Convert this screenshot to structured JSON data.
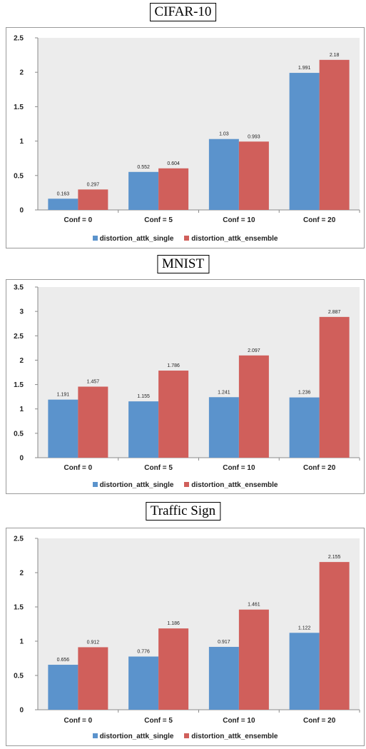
{
  "chart_data": [
    {
      "type": "bar",
      "title": "CIFAR-10",
      "categories": [
        "Conf = 0",
        "Conf = 5",
        "Conf = 10",
        "Conf = 20"
      ],
      "series": [
        {
          "name": "distortion_attk_single",
          "values": [
            0.163,
            0.552,
            1.03,
            1.991
          ],
          "labels": [
            "0.163",
            "0.552",
            "1.03",
            "1.991"
          ]
        },
        {
          "name": "distortion_attk_ensemble",
          "values": [
            0.297,
            0.604,
            0.993,
            2.18
          ],
          "labels": [
            "0.297",
            "0.604",
            "0.993",
            "2.18"
          ]
        }
      ],
      "ylim": [
        0,
        2.5
      ],
      "yticks": [
        "0",
        "0.5",
        "1",
        "1.5",
        "2",
        "2.5"
      ],
      "grid": false,
      "legend": "bottom"
    },
    {
      "type": "bar",
      "title": "MNIST",
      "categories": [
        "Conf = 0",
        "Conf = 5",
        "Conf = 10",
        "Conf = 20"
      ],
      "series": [
        {
          "name": "distortion_attk_single",
          "values": [
            1.191,
            1.155,
            1.241,
            1.236
          ],
          "labels": [
            "1.191",
            "1.155",
            "1.241",
            "1.236"
          ]
        },
        {
          "name": "distortion_attk_ensemble",
          "values": [
            1.457,
            1.786,
            2.097,
            2.887
          ],
          "labels": [
            "1.457",
            "1.786",
            "2.097",
            "2.887"
          ]
        }
      ],
      "ylim": [
        0,
        3.5
      ],
      "yticks": [
        "0",
        "0.5",
        "1",
        "1.5",
        "2",
        "2.5",
        "3",
        "3.5"
      ],
      "grid": false,
      "legend": "bottom"
    },
    {
      "type": "bar",
      "title": "Traffic Sign",
      "categories": [
        "Conf = 0",
        "Conf = 5",
        "Conf = 10",
        "Conf = 20"
      ],
      "series": [
        {
          "name": "distortion_attk_single",
          "values": [
            0.656,
            0.776,
            0.917,
            1.122
          ],
          "labels": [
            "0.656",
            "0.776",
            "0.917",
            "1.122"
          ]
        },
        {
          "name": "distortion_attk_ensemble",
          "values": [
            0.912,
            1.186,
            1.461,
            2.155
          ],
          "labels": [
            "0.912",
            "1.186",
            "1.461",
            "2.155"
          ]
        }
      ],
      "ylim": [
        0,
        2.5
      ],
      "yticks": [
        "0",
        "0.5",
        "1",
        "1.5",
        "2",
        "2.5"
      ],
      "grid": false,
      "legend": "bottom"
    }
  ],
  "colors": {
    "series": [
      "#5b93cc",
      "#d05f5b"
    ],
    "plot_background": "#ececec",
    "axis": "#8a8a8a"
  }
}
